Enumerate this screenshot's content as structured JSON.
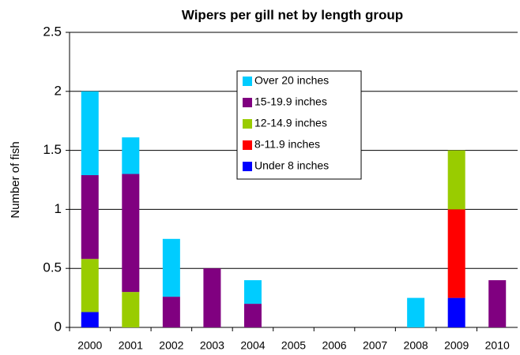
{
  "chart_data": {
    "type": "stacked_bar",
    "title": "Wipers per gill net by length group",
    "y_label": "Number of fish",
    "categories": [
      "2000",
      "2001",
      "2002",
      "2003",
      "2004",
      "2005",
      "2006",
      "2007",
      "2008",
      "2009",
      "2010"
    ],
    "series": [
      {
        "name": "Under 8 inches",
        "color": "#0000ff",
        "values": [
          0.13,
          0,
          0,
          0,
          0,
          0,
          0,
          0,
          0,
          0.25,
          0
        ]
      },
      {
        "name": "8-11.9 inches",
        "color": "#ff0000",
        "values": [
          0,
          0,
          0,
          0,
          0,
          0,
          0,
          0,
          0,
          0.75,
          0
        ]
      },
      {
        "name": "12-14.9 inches",
        "color": "#99cc00",
        "values": [
          0.45,
          0.3,
          0,
          0,
          0,
          0,
          0,
          0,
          0,
          0.5,
          0
        ]
      },
      {
        "name": "15-19.9 inches",
        "color": "#800080",
        "values": [
          0.71,
          1.0,
          0.26,
          0.5,
          0.2,
          0,
          0,
          0,
          0,
          0,
          0.4
        ]
      },
      {
        "name": "Over 20 inches",
        "color": "#00ccff",
        "values": [
          0.71,
          0.31,
          0.49,
          0,
          0.2,
          0,
          0,
          0,
          0.25,
          0,
          0
        ]
      }
    ],
    "ylim": [
      0,
      2.5
    ],
    "yticks": [
      0,
      0.5,
      1,
      1.5,
      2,
      2.5
    ],
    "grid": true
  }
}
